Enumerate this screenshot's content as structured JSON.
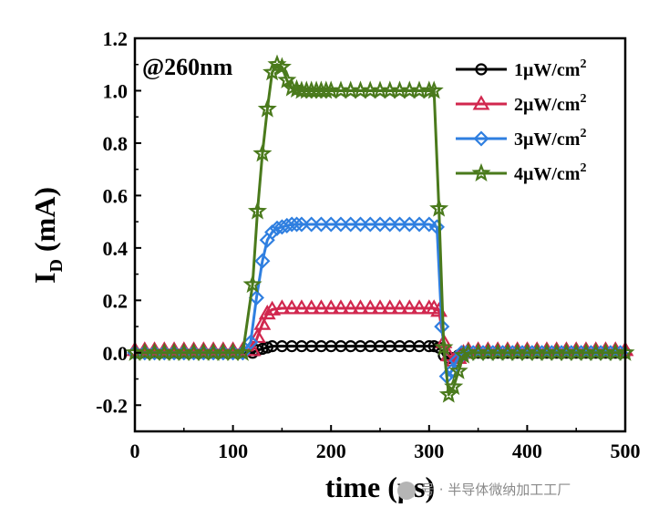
{
  "chart_data": {
    "type": "line",
    "title": "",
    "annotation": "@260nm",
    "xlabel": "time (μs)",
    "ylabel_main": "I",
    "ylabel_sub": "D",
    "ylabel_unit": " (mA)",
    "xlim": [
      0,
      500
    ],
    "ylim": [
      -0.3,
      1.2
    ],
    "xticks": [
      0,
      100,
      200,
      300,
      400,
      500
    ],
    "xtick_labels": [
      "0",
      "100",
      "200",
      "300",
      "400",
      "500"
    ],
    "yticks": [
      -0.2,
      0.0,
      0.2,
      0.4,
      0.6,
      0.8,
      1.0,
      1.2
    ],
    "ytick_labels": [
      "-0.2",
      "0.0",
      "0.2",
      "0.4",
      "0.6",
      "0.8",
      "1.0",
      "1.2"
    ],
    "legend_position": "top-right",
    "series": [
      {
        "name": "1μW/cm²",
        "label_base": "1μW/cm",
        "label_sup": "2",
        "color": "#000000",
        "marker": "circle",
        "x": [
          0,
          10,
          20,
          30,
          40,
          50,
          60,
          70,
          80,
          90,
          100,
          110,
          120,
          125,
          130,
          135,
          140,
          150,
          160,
          170,
          180,
          190,
          200,
          210,
          220,
          230,
          240,
          250,
          260,
          270,
          280,
          290,
          300,
          305,
          310,
          315,
          320,
          325,
          330,
          335,
          340,
          350,
          360,
          370,
          380,
          390,
          400,
          410,
          420,
          430,
          440,
          450,
          460,
          470,
          480,
          490,
          500
        ],
        "values": [
          0,
          0,
          0,
          0,
          0,
          0,
          0,
          0,
          0,
          0,
          0,
          0,
          0,
          0.01,
          0.015,
          0.02,
          0.025,
          0.025,
          0.025,
          0.025,
          0.025,
          0.025,
          0.025,
          0.025,
          0.025,
          0.025,
          0.025,
          0.025,
          0.025,
          0.025,
          0.025,
          0.025,
          0.025,
          0.025,
          0.02,
          -0.01,
          -0.02,
          -0.02,
          -0.01,
          0,
          0,
          0,
          0,
          0,
          0,
          0,
          0,
          0,
          0,
          0,
          0,
          0,
          0,
          0,
          0,
          0,
          0
        ]
      },
      {
        "name": "2μW/cm²",
        "label_base": "2μW/cm",
        "label_sup": "2",
        "color": "#d1274e",
        "marker": "triangle",
        "x": [
          0,
          10,
          20,
          30,
          40,
          50,
          60,
          70,
          80,
          90,
          100,
          110,
          120,
          125,
          130,
          135,
          140,
          150,
          160,
          170,
          180,
          190,
          200,
          210,
          220,
          230,
          240,
          250,
          260,
          270,
          280,
          290,
          300,
          305,
          310,
          315,
          320,
          325,
          330,
          335,
          340,
          350,
          360,
          370,
          380,
          390,
          400,
          410,
          420,
          430,
          440,
          450,
          460,
          470,
          480,
          490,
          500
        ],
        "values": [
          0.01,
          0.01,
          0.01,
          0.01,
          0.01,
          0.01,
          0.01,
          0.01,
          0.01,
          0.01,
          0.01,
          0.01,
          0.01,
          0.06,
          0.11,
          0.15,
          0.165,
          0.17,
          0.17,
          0.17,
          0.17,
          0.17,
          0.17,
          0.17,
          0.17,
          0.17,
          0.17,
          0.17,
          0.17,
          0.17,
          0.17,
          0.17,
          0.17,
          0.17,
          0.16,
          0.04,
          -0.01,
          -0.03,
          -0.02,
          0,
          0.01,
          0.01,
          0.01,
          0.01,
          0.01,
          0.01,
          0.01,
          0.01,
          0.01,
          0.01,
          0.01,
          0.01,
          0.01,
          0.01,
          0.01,
          0.01,
          0.01
        ]
      },
      {
        "name": "3μW/cm²",
        "label_base": "3μW/cm",
        "label_sup": "2",
        "color": "#2f7fe0",
        "marker": "diamond",
        "x": [
          0,
          10,
          20,
          30,
          40,
          50,
          60,
          70,
          80,
          90,
          100,
          110,
          118,
          124,
          130,
          135,
          140,
          145,
          150,
          155,
          160,
          165,
          170,
          180,
          190,
          200,
          210,
          220,
          230,
          240,
          250,
          260,
          270,
          280,
          290,
          300,
          308,
          313,
          318,
          323,
          328,
          333,
          338,
          345,
          355,
          365,
          375,
          385,
          395,
          405,
          415,
          425,
          435,
          445,
          455,
          465,
          475,
          485,
          495
        ],
        "values": [
          0,
          0,
          0,
          0,
          0,
          0,
          0,
          0,
          0,
          0,
          0,
          0,
          0.04,
          0.21,
          0.35,
          0.43,
          0.46,
          0.475,
          0.48,
          0.485,
          0.49,
          0.49,
          0.49,
          0.49,
          0.49,
          0.49,
          0.49,
          0.49,
          0.49,
          0.49,
          0.49,
          0.49,
          0.49,
          0.49,
          0.49,
          0.49,
          0.48,
          0.1,
          -0.09,
          -0.07,
          -0.03,
          0,
          0,
          0,
          0,
          0,
          0,
          0,
          0,
          0,
          0,
          0,
          0,
          0,
          0,
          0,
          0,
          0,
          0
        ]
      },
      {
        "name": "4μW/cm²",
        "label_base": "4μW/cm",
        "label_sup": "2",
        "color": "#4a7a1c",
        "marker": "star",
        "x": [
          0,
          10,
          20,
          30,
          40,
          50,
          60,
          70,
          80,
          90,
          100,
          110,
          120,
          125,
          130,
          135,
          140,
          145,
          150,
          155,
          160,
          165,
          170,
          175,
          180,
          185,
          190,
          195,
          200,
          210,
          220,
          230,
          240,
          250,
          260,
          270,
          280,
          290,
          300,
          305,
          310,
          315,
          320,
          325,
          330,
          335,
          340,
          350,
          360,
          370,
          380,
          390,
          400,
          410,
          420,
          430,
          440,
          450,
          460,
          470,
          480,
          490,
          500
        ],
        "values": [
          0,
          0,
          0,
          0,
          0,
          0,
          0,
          0,
          0,
          0,
          0,
          0,
          0.26,
          0.54,
          0.76,
          0.93,
          1.07,
          1.1,
          1.09,
          1.04,
          1.01,
          1.005,
          1.0,
          1.0,
          1.0,
          1.0,
          1.0,
          1.0,
          1.0,
          1.0,
          1.0,
          1.0,
          1.0,
          1.0,
          1.0,
          1.0,
          1.0,
          1.0,
          1.0,
          1.0,
          0.55,
          0.02,
          -0.16,
          -0.13,
          -0.07,
          -0.01,
          0,
          0,
          0,
          0,
          0,
          0,
          0,
          0,
          0,
          0,
          0,
          0,
          0,
          0,
          0,
          0,
          0
        ]
      }
    ]
  },
  "watermark": "号 · 半导体微纳加工工厂"
}
